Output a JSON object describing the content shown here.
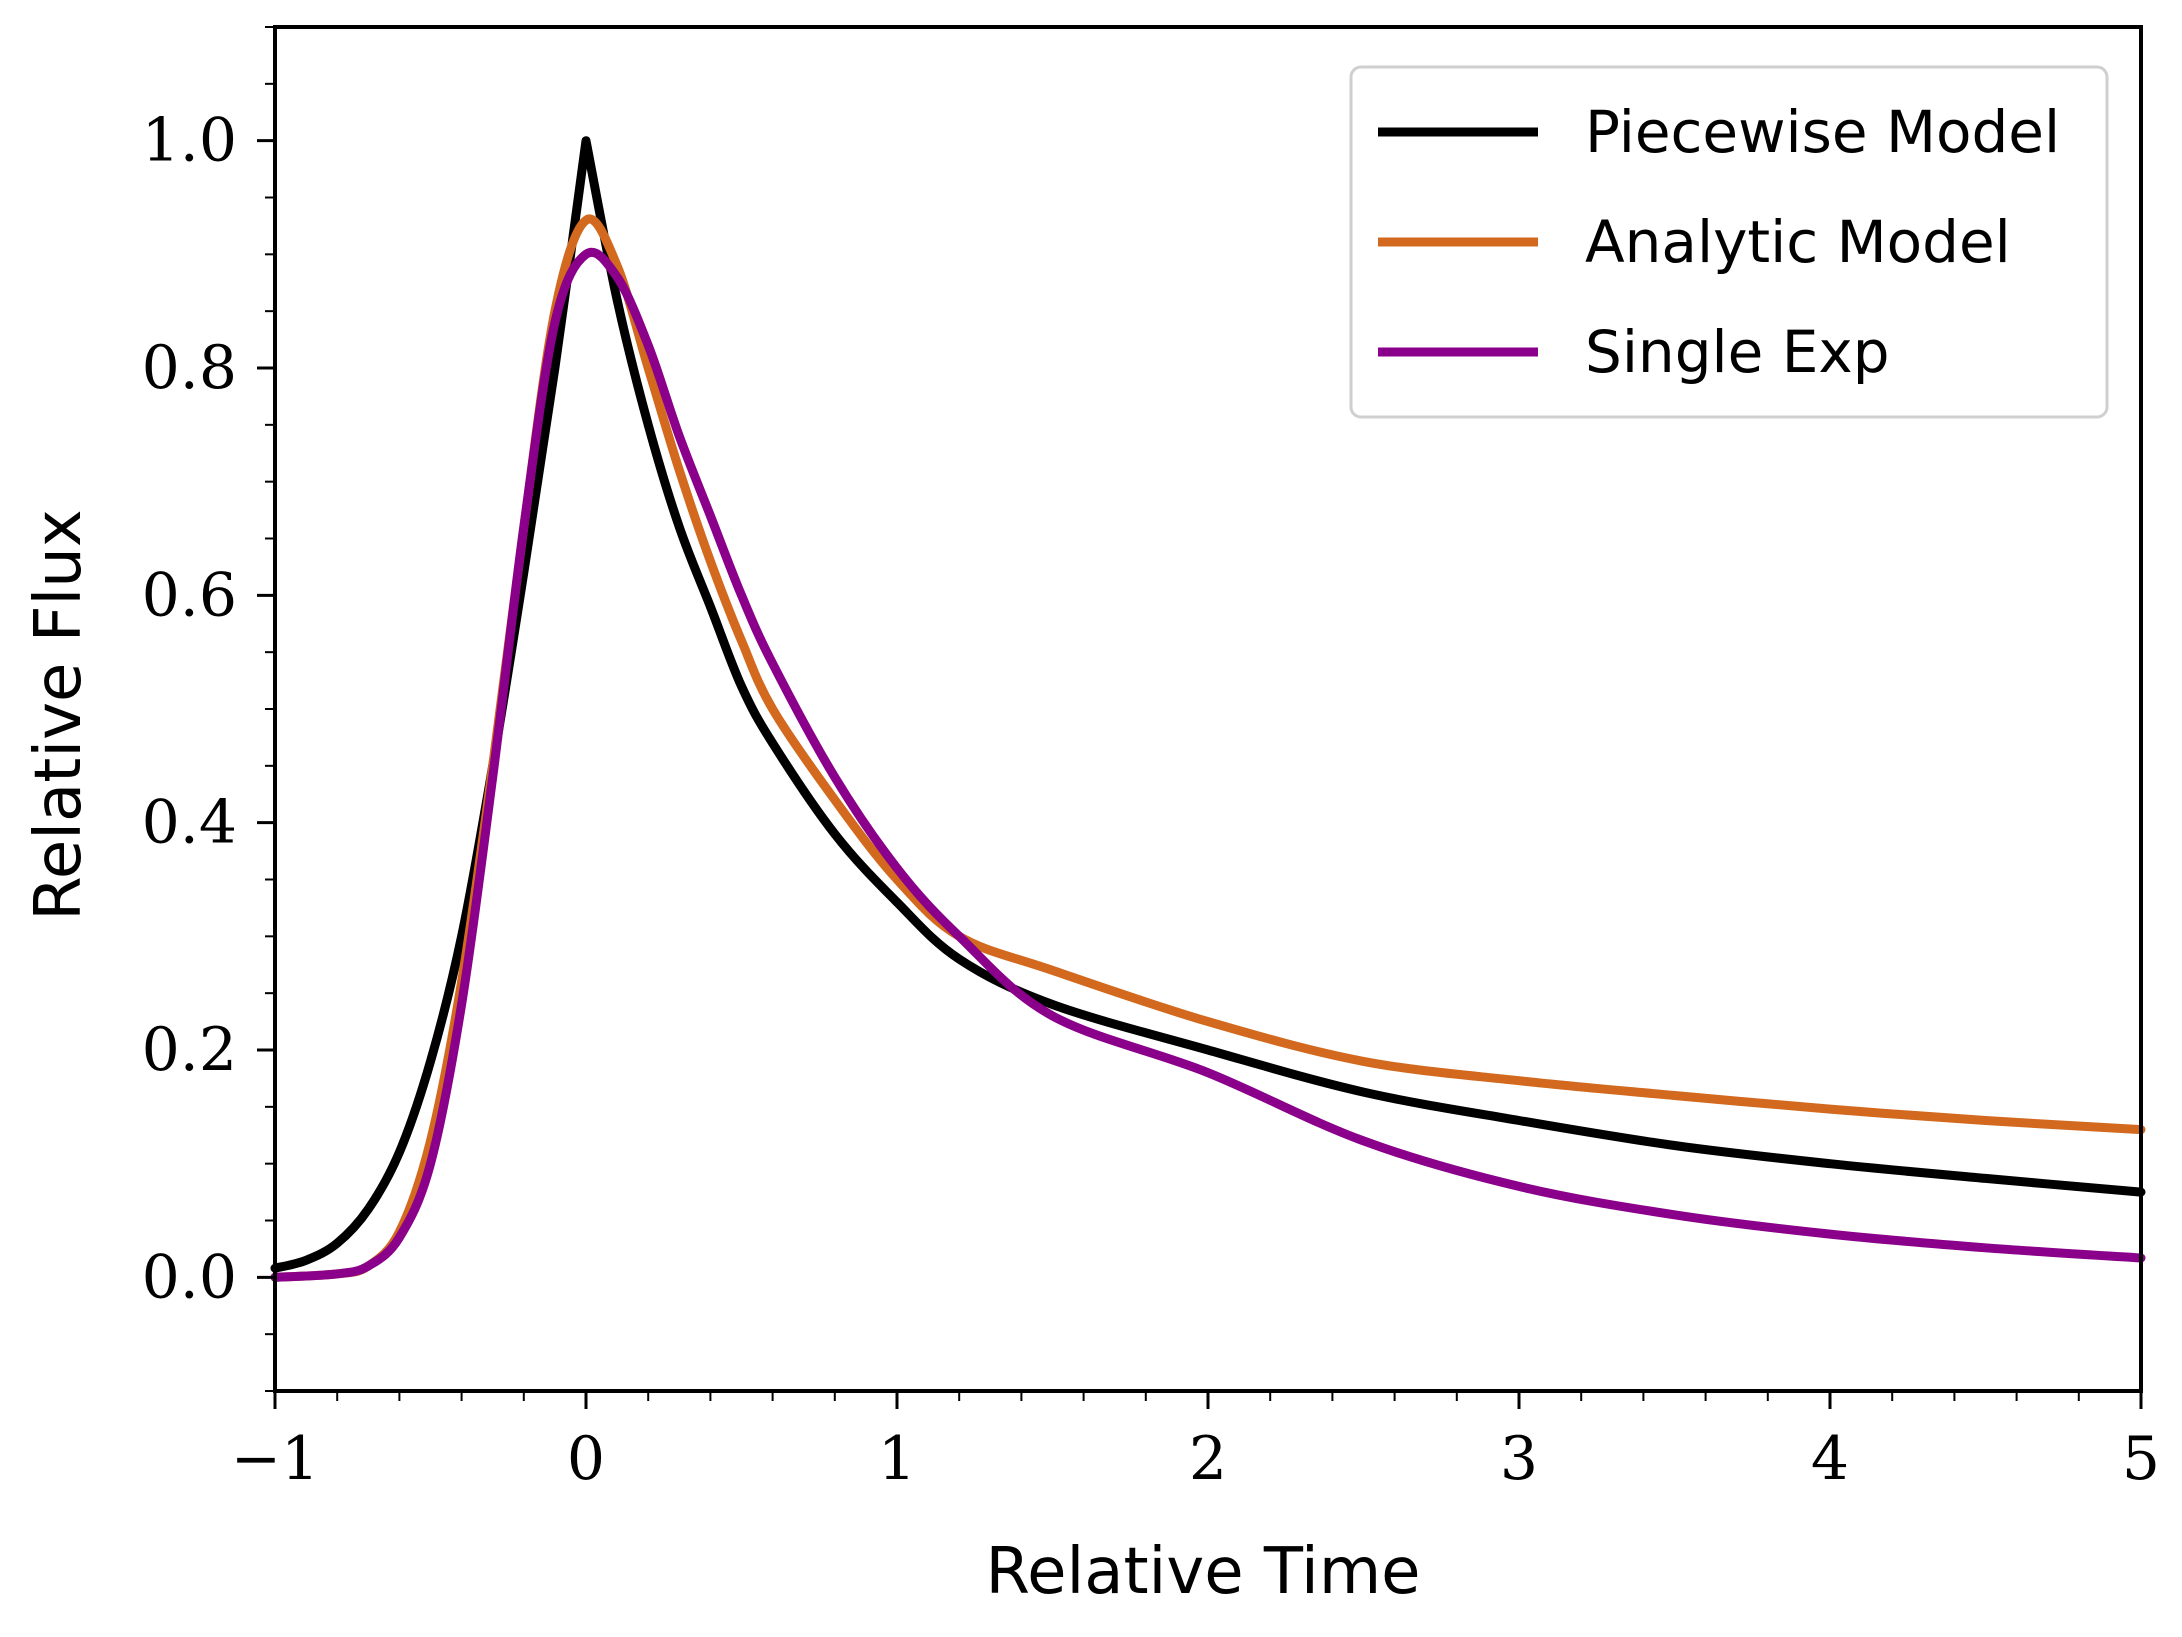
{
  "chart_data": {
    "type": "line",
    "title": "",
    "xlabel": "Relative Time",
    "ylabel": "Relative Flux",
    "xlim": [
      -1,
      5
    ],
    "ylim": [
      -0.1,
      1.1
    ],
    "xticks": [
      -1,
      0,
      1,
      2,
      3,
      4,
      5
    ],
    "xtick_labels": [
      "−1",
      "0",
      "1",
      "2",
      "3",
      "4",
      "5"
    ],
    "yticks": [
      0.0,
      0.2,
      0.4,
      0.6,
      0.8,
      1.0
    ],
    "ytick_labels": [
      "0.0",
      "0.2",
      "0.4",
      "0.6",
      "0.8",
      "1.0"
    ],
    "grid": false,
    "legend_position": "top-right",
    "series": [
      {
        "name": "Piecewise Model",
        "color": "#000000",
        "x": [
          -1.0,
          -0.9,
          -0.8,
          -0.7,
          -0.6,
          -0.5,
          -0.4,
          -0.3,
          -0.2,
          -0.1,
          0.0,
          0.1,
          0.2,
          0.3,
          0.4,
          0.5,
          0.6,
          0.8,
          1.0,
          1.2,
          1.5,
          2.0,
          2.5,
          3.0,
          3.5,
          4.0,
          4.5,
          5.0
        ],
        "y": [
          0.008,
          0.015,
          0.03,
          0.06,
          0.11,
          0.19,
          0.3,
          0.45,
          0.62,
          0.8,
          1.0,
          0.86,
          0.75,
          0.66,
          0.59,
          0.52,
          0.47,
          0.39,
          0.33,
          0.28,
          0.24,
          0.2,
          0.163,
          0.138,
          0.116,
          0.1,
          0.087,
          0.075
        ]
      },
      {
        "name": "Analytic Model",
        "color": "#d2691e",
        "x": [
          -1.0,
          -0.8,
          -0.7,
          -0.6,
          -0.5,
          -0.4,
          -0.3,
          -0.2,
          -0.1,
          0.0,
          0.1,
          0.2,
          0.3,
          0.4,
          0.5,
          0.6,
          0.8,
          1.0,
          1.2,
          1.5,
          2.0,
          2.5,
          3.0,
          3.5,
          4.0,
          4.5,
          5.0
        ],
        "y": [
          0.0,
          0.003,
          0.01,
          0.04,
          0.12,
          0.26,
          0.45,
          0.66,
          0.85,
          0.93,
          0.89,
          0.8,
          0.71,
          0.63,
          0.56,
          0.5,
          0.42,
          0.35,
          0.3,
          0.27,
          0.225,
          0.19,
          0.173,
          0.16,
          0.148,
          0.138,
          0.13
        ]
      },
      {
        "name": "Single Exp",
        "color": "#8b008b",
        "x": [
          -1.0,
          -0.8,
          -0.7,
          -0.6,
          -0.5,
          -0.4,
          -0.3,
          -0.2,
          -0.1,
          0.0,
          0.1,
          0.2,
          0.3,
          0.4,
          0.5,
          0.6,
          0.8,
          1.0,
          1.2,
          1.5,
          2.0,
          2.5,
          3.0,
          3.5,
          4.0,
          4.5,
          5.0
        ],
        "y": [
          0.0,
          0.003,
          0.01,
          0.035,
          0.1,
          0.24,
          0.44,
          0.66,
          0.84,
          0.9,
          0.88,
          0.82,
          0.74,
          0.67,
          0.6,
          0.54,
          0.44,
          0.36,
          0.3,
          0.23,
          0.18,
          0.12,
          0.08,
          0.055,
          0.038,
          0.026,
          0.017
        ]
      }
    ]
  }
}
